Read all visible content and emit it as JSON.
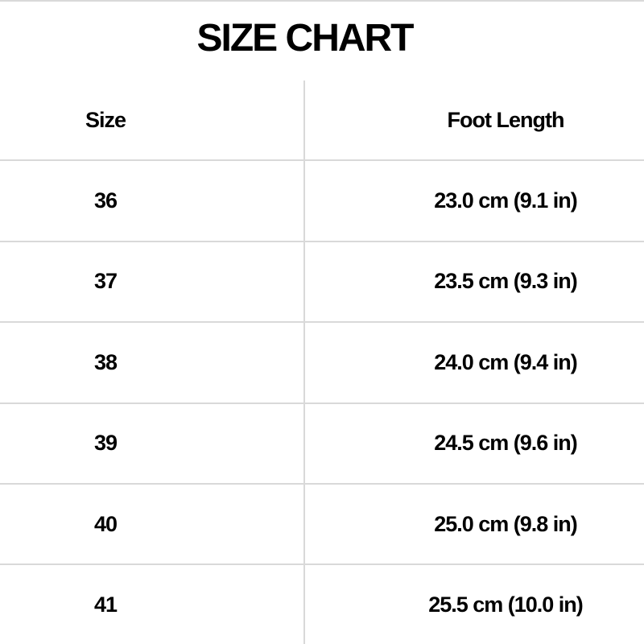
{
  "title": "SIZE CHART",
  "colors": {
    "background": "#ffffff",
    "grid_line": "#d9d9d9",
    "text": "#000000"
  },
  "table": {
    "columns": [
      {
        "label": "Size"
      },
      {
        "label": "Foot Length"
      }
    ],
    "rows": [
      {
        "size": "36",
        "foot_length": "23.0 cm (9.1 in)"
      },
      {
        "size": "37",
        "foot_length": "23.5 cm (9.3 in)"
      },
      {
        "size": "38",
        "foot_length": "24.0 cm (9.4 in)"
      },
      {
        "size": "39",
        "foot_length": "24.5 cm (9.6 in)"
      },
      {
        "size": "40",
        "foot_length": "25.0 cm (9.8 in)"
      },
      {
        "size": "41",
        "foot_length": "25.5 cm (10.0 in)"
      }
    ]
  }
}
